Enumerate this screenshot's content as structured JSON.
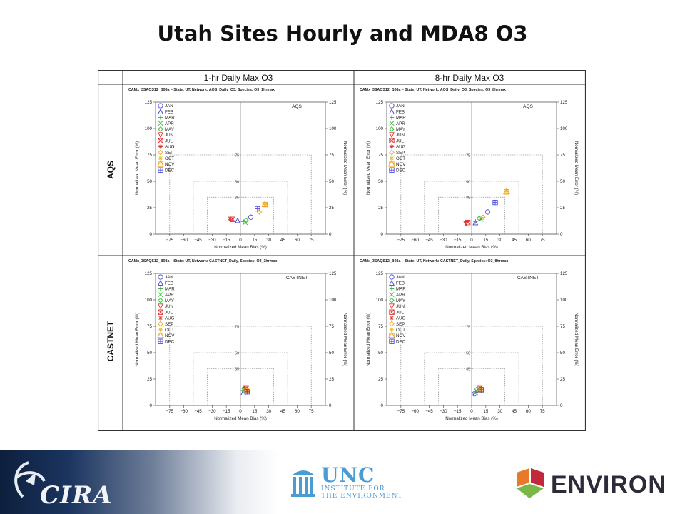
{
  "page": {
    "title": "Utah Sites Hourly and MDA8 O3"
  },
  "grid": {
    "col_headers": [
      "1-hr Daily Max O3",
      "8-hr Daily Max O3"
    ],
    "row_headers": [
      "AQS",
      "CASTNET"
    ]
  },
  "plot_common": {
    "xlabel": "Normalized Mean Bias (%)",
    "ylabel": "Normalized Mean Error (%)",
    "xticks": [
      -75,
      -60,
      -45,
      -30,
      -15,
      0,
      15,
      30,
      45,
      60,
      75
    ],
    "yticks": [
      0,
      25,
      50,
      75,
      100,
      125
    ],
    "xlim": [
      -90,
      90
    ],
    "ylim": [
      0,
      125
    ],
    "goal_boxes": [
      35,
      50,
      75
    ],
    "legend_position": "top-left",
    "months": [
      "JAN",
      "FEB",
      "MAR",
      "APR",
      "MAY",
      "JUN",
      "JUL",
      "AUG",
      "SEP",
      "OCT",
      "NOV",
      "DEC"
    ],
    "month_colors": [
      "#4a4ad6",
      "#3b3bd0",
      "#2ea82e",
      "#33bb33",
      "#33bb33",
      "#e03030",
      "#e03030",
      "#e03030",
      "#f0a020",
      "#e0c020",
      "#f0a020",
      "#4a4ad6"
    ],
    "month_symbols": [
      "circle",
      "triangle",
      "plus",
      "cross",
      "diamond",
      "triangle-down",
      "boxx",
      "star",
      "diamond",
      "star",
      "boxstar",
      "boxplus"
    ]
  },
  "chart_data": [
    {
      "type": "scatter",
      "panel": "aqs-1hr",
      "title": "CAMx_3SAQS12_B08a – State: UT, Network: AQS_Daily_O3, Species: O3_1hrmax",
      "network_label": "AQS",
      "series": [
        {
          "name": "JAN",
          "x": 11,
          "y": 16
        },
        {
          "name": "FEB",
          "x": -3,
          "y": 13
        },
        {
          "name": "MAR",
          "x": 3,
          "y": 12
        },
        {
          "name": "APR",
          "x": 5,
          "y": 11
        },
        {
          "name": "MAY",
          "x": 6,
          "y": 13
        },
        {
          "name": "JUN",
          "x": -10,
          "y": 14
        },
        {
          "name": "JUL",
          "x": -8,
          "y": 14
        },
        {
          "name": "AUG",
          "x": -11,
          "y": 14
        },
        {
          "name": "SEP",
          "x": 20,
          "y": 21
        },
        {
          "name": "OCT",
          "x": 26,
          "y": 28
        },
        {
          "name": "NOV",
          "x": 26,
          "y": 28
        },
        {
          "name": "DEC",
          "x": 18,
          "y": 24
        }
      ]
    },
    {
      "type": "scatter",
      "panel": "aqs-8hr",
      "title": "CAMx_3SAQS12_B08a – State: UT, Network: AQS_Daily_O3, Species: O3_8hrmax",
      "network_label": "AQS",
      "series": [
        {
          "name": "JAN",
          "x": 17,
          "y": 21
        },
        {
          "name": "FEB",
          "x": 4,
          "y": 11
        },
        {
          "name": "MAR",
          "x": 4,
          "y": 12
        },
        {
          "name": "APR",
          "x": 10,
          "y": 14
        },
        {
          "name": "MAY",
          "x": 8,
          "y": 15
        },
        {
          "name": "JUN",
          "x": -6,
          "y": 10
        },
        {
          "name": "JUL",
          "x": -4,
          "y": 11
        },
        {
          "name": "AUG",
          "x": -5,
          "y": 12
        },
        {
          "name": "SEP",
          "x": 12,
          "y": 16
        },
        {
          "name": "OCT",
          "x": 37,
          "y": 41
        },
        {
          "name": "NOV",
          "x": 37,
          "y": 40
        },
        {
          "name": "DEC",
          "x": 25,
          "y": 30
        }
      ]
    },
    {
      "type": "scatter",
      "panel": "castnet-1hr",
      "title": "CAMx_3SAQS12_B08a – State: UT, Network: CASTNET_Daily, Species: O3_1hrmax",
      "network_label": "CASTNET",
      "series": [
        {
          "name": "JAN",
          "x": 6,
          "y": 13
        },
        {
          "name": "FEB",
          "x": 3,
          "y": 12
        },
        {
          "name": "MAR",
          "x": 3,
          "y": 14
        },
        {
          "name": "APR",
          "x": 4,
          "y": 15
        },
        {
          "name": "MAY",
          "x": 4,
          "y": 16
        },
        {
          "name": "JUN",
          "x": 6,
          "y": 16
        },
        {
          "name": "JUL",
          "x": 5,
          "y": 15
        },
        {
          "name": "AUG",
          "x": 7,
          "y": 15
        },
        {
          "name": "SEP",
          "x": 7,
          "y": 14
        },
        {
          "name": "OCT",
          "x": 5,
          "y": 13
        },
        {
          "name": "NOV",
          "x": 6,
          "y": 14
        },
        {
          "name": "DEC",
          "x": 7,
          "y": 13
        }
      ]
    },
    {
      "type": "scatter",
      "panel": "castnet-8hr",
      "title": "CAMx_3SAQS12_B08a – State: UT, Network: CASTNET_Daily, Species: O3_8hrmax",
      "network_label": "CASTNET",
      "series": [
        {
          "name": "JAN",
          "x": 3,
          "y": 11
        },
        {
          "name": "FEB",
          "x": 4,
          "y": 12
        },
        {
          "name": "MAR",
          "x": 4,
          "y": 13
        },
        {
          "name": "APR",
          "x": 5,
          "y": 14
        },
        {
          "name": "MAY",
          "x": 5,
          "y": 15
        },
        {
          "name": "JUN",
          "x": 8,
          "y": 16
        },
        {
          "name": "JUL",
          "x": 8,
          "y": 14
        },
        {
          "name": "AUG",
          "x": 9,
          "y": 15
        },
        {
          "name": "SEP",
          "x": 9,
          "y": 16
        },
        {
          "name": "OCT",
          "x": 9,
          "y": 15
        },
        {
          "name": "NOV",
          "x": 10,
          "y": 14
        },
        {
          "name": "DEC",
          "x": 10,
          "y": 15
        }
      ]
    }
  ],
  "footer": {
    "cira": "CIRA",
    "unc_big": "UNC",
    "unc_small_1": "INSTITUTE FOR",
    "unc_small_2": "THE ENVIRONMENT",
    "environ": "ENVIRON",
    "colors": {
      "unc_blue": "#4b9cd3",
      "environ_dark": "#2b2b3a",
      "environ_orange": "#e8782a",
      "environ_red": "#c02a3a",
      "environ_green": "#7ab648"
    }
  }
}
